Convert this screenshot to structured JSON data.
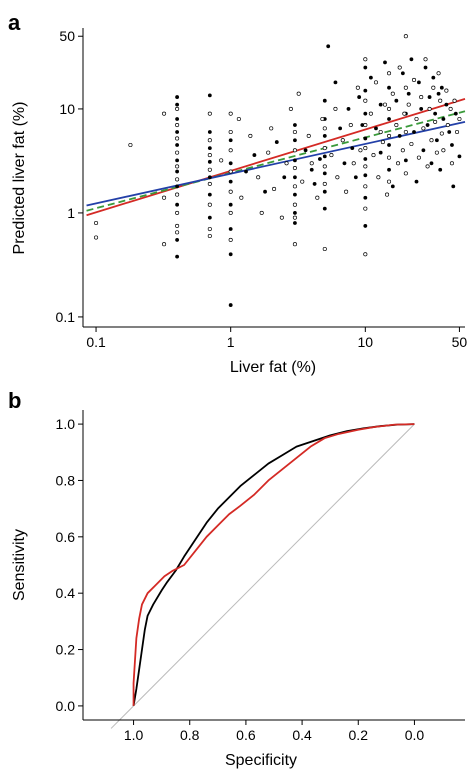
{
  "chart_data": [
    {
      "panel": "a",
      "type": "scatter",
      "xlabel": "Liver fat (%)",
      "ylabel": "Predicted liver fat (%)",
      "x_scale": "log",
      "y_scale": "log",
      "xlim": [
        0.08,
        55
      ],
      "ylim": [
        0.08,
        60
      ],
      "x_ticks": [
        0.1,
        1,
        10,
        50
      ],
      "x_tick_labels": [
        "0.1",
        "1",
        "10",
        "50"
      ],
      "y_ticks": [
        0.1,
        1,
        10,
        50
      ],
      "y_tick_labels": [
        "0.1",
        "1",
        "10",
        "50"
      ],
      "grid": false,
      "legend": "none",
      "series": [
        {
          "marker": "filled-circle",
          "color": "#000000",
          "points": [
            [
              0.4,
              13
            ],
            [
              0.4,
              11
            ],
            [
              0.4,
              8
            ],
            [
              0.4,
              6
            ],
            [
              0.4,
              4.5
            ],
            [
              0.4,
              3.2
            ],
            [
              0.4,
              2.5
            ],
            [
              0.4,
              1.8
            ],
            [
              0.4,
              1.2
            ],
            [
              0.4,
              0.55
            ],
            [
              0.4,
              0.38
            ],
            [
              0.7,
              6
            ],
            [
              0.7,
              4.2
            ],
            [
              0.7,
              3.1
            ],
            [
              0.7,
              2.2
            ],
            [
              0.7,
              1.5
            ],
            [
              0.7,
              0.9
            ],
            [
              0.7,
              13.5
            ],
            [
              1,
              5
            ],
            [
              1,
              3
            ],
            [
              1,
              2
            ],
            [
              1,
              1.2
            ],
            [
              1,
              0.7
            ],
            [
              1,
              0.4
            ],
            [
              1,
              0.13
            ],
            [
              1.3,
              2.5
            ],
            [
              1.5,
              3.6
            ],
            [
              1.8,
              1.6
            ],
            [
              2.2,
              4.8
            ],
            [
              2.5,
              2.2
            ],
            [
              3,
              7
            ],
            [
              3,
              5
            ],
            [
              3,
              3.2
            ],
            [
              3,
              2.2
            ],
            [
              3,
              1.5
            ],
            [
              3,
              1
            ],
            [
              3,
              0.8
            ],
            [
              3.6,
              4
            ],
            [
              4,
              2.6
            ],
            [
              4.2,
              1.9
            ],
            [
              4.6,
              3.3
            ],
            [
              5,
              12
            ],
            [
              5,
              8
            ],
            [
              5,
              5.5
            ],
            [
              5,
              3.5
            ],
            [
              5,
              2.4
            ],
            [
              5,
              1.6
            ],
            [
              5,
              1.1
            ],
            [
              5.3,
              40
            ],
            [
              6,
              18
            ],
            [
              6.5,
              6.5
            ],
            [
              7,
              3
            ],
            [
              7.5,
              10
            ],
            [
              8,
              4.2
            ],
            [
              8.5,
              2.2
            ],
            [
              9,
              13
            ],
            [
              9.5,
              7
            ],
            [
              10,
              25
            ],
            [
              10,
              15
            ],
            [
              10,
              9
            ],
            [
              10,
              5.2
            ],
            [
              10,
              3.3
            ],
            [
              10,
              2.3
            ],
            [
              10,
              1.4
            ],
            [
              10,
              0.75
            ],
            [
              11,
              20
            ],
            [
              12,
              6.5
            ],
            [
              13,
              11
            ],
            [
              13,
              3.8
            ],
            [
              14,
              28
            ],
            [
              15,
              16
            ],
            [
              15,
              8
            ],
            [
              15,
              4.5
            ],
            [
              15,
              2.6
            ],
            [
              16,
              1.8
            ],
            [
              17,
              12
            ],
            [
              18,
              5.5
            ],
            [
              19,
              22
            ],
            [
              20,
              9
            ],
            [
              20,
              3.2
            ],
            [
              21,
              14
            ],
            [
              22,
              30
            ],
            [
              23,
              6
            ],
            [
              24,
              2
            ],
            [
              25,
              18
            ],
            [
              26,
              10
            ],
            [
              27,
              4
            ],
            [
              28,
              25
            ],
            [
              29,
              7
            ],
            [
              30,
              13
            ],
            [
              31,
              3
            ],
            [
              32,
              20
            ],
            [
              33,
              9
            ],
            [
              34,
              5
            ],
            [
              35,
              14
            ],
            [
              36,
              2.6
            ],
            [
              37,
              16
            ],
            [
              38,
              8
            ],
            [
              40,
              11
            ],
            [
              42,
              6
            ],
            [
              44,
              4.5
            ],
            [
              45,
              1.8
            ],
            [
              47,
              9
            ],
            [
              50,
              3.5
            ]
          ]
        },
        {
          "marker": "open-circle",
          "color": "#000000",
          "points": [
            [
              0.1,
              0.58
            ],
            [
              0.1,
              0.8
            ],
            [
              0.18,
              4.5
            ],
            [
              0.4,
              10
            ],
            [
              0.4,
              7
            ],
            [
              0.4,
              5.2
            ],
            [
              0.4,
              3.8
            ],
            [
              0.4,
              2.8
            ],
            [
              0.4,
              2.1
            ],
            [
              0.4,
              1.5
            ],
            [
              0.4,
              1
            ],
            [
              0.4,
              0.75
            ],
            [
              0.4,
              0.65
            ],
            [
              0.32,
              9
            ],
            [
              0.32,
              0.5
            ],
            [
              0.32,
              1.4
            ],
            [
              0.7,
              9
            ],
            [
              0.7,
              5
            ],
            [
              0.7,
              3.6
            ],
            [
              0.7,
              2.6
            ],
            [
              0.7,
              1.9
            ],
            [
              0.7,
              1.2
            ],
            [
              0.7,
              0.7
            ],
            [
              0.7,
              0.6
            ],
            [
              1,
              9
            ],
            [
              1,
              6
            ],
            [
              1,
              4
            ],
            [
              1,
              2.5
            ],
            [
              1,
              1.6
            ],
            [
              1,
              1
            ],
            [
              1,
              0.55
            ],
            [
              0.85,
              3.2
            ],
            [
              1.15,
              8
            ],
            [
              1.2,
              1.4
            ],
            [
              1.4,
              5.5
            ],
            [
              1.6,
              2.2
            ],
            [
              1.7,
              1
            ],
            [
              1.9,
              3.8
            ],
            [
              2,
              6.5
            ],
            [
              2.1,
              1.7
            ],
            [
              2.4,
              0.9
            ],
            [
              2.6,
              3
            ],
            [
              2.8,
              10
            ],
            [
              3,
              6
            ],
            [
              3,
              4
            ],
            [
              3,
              2.7
            ],
            [
              3,
              1.8
            ],
            [
              3,
              1.2
            ],
            [
              3,
              0.9
            ],
            [
              3,
              0.5
            ],
            [
              3.2,
              14
            ],
            [
              3.4,
              2
            ],
            [
              3.8,
              5.5
            ],
            [
              4,
              3
            ],
            [
              4.4,
              1.4
            ],
            [
              4.8,
              8
            ],
            [
              5,
              6.5
            ],
            [
              5,
              4.2
            ],
            [
              5,
              2.8
            ],
            [
              5,
              1.9
            ],
            [
              5,
              0.45
            ],
            [
              5.6,
              3.6
            ],
            [
              6,
              10
            ],
            [
              6.2,
              2.2
            ],
            [
              6.8,
              5
            ],
            [
              7.2,
              1.6
            ],
            [
              7.8,
              7
            ],
            [
              8.2,
              3
            ],
            [
              8.8,
              16
            ],
            [
              9.2,
              4
            ],
            [
              10,
              30
            ],
            [
              10,
              12
            ],
            [
              10,
              7
            ],
            [
              10,
              4.2
            ],
            [
              10,
              2.8
            ],
            [
              10,
              1.8
            ],
            [
              10,
              1.1
            ],
            [
              10,
              0.4
            ],
            [
              11,
              9
            ],
            [
              11.5,
              3.6
            ],
            [
              12,
              18
            ],
            [
              12.5,
              2.2
            ],
            [
              13,
              6
            ],
            [
              13.5,
              4.8
            ],
            [
              14,
              11
            ],
            [
              14.5,
              1.5
            ],
            [
              15,
              22
            ],
            [
              15,
              10
            ],
            [
              15,
              5.5
            ],
            [
              15,
              3.4
            ],
            [
              15,
              2
            ],
            [
              16,
              14
            ],
            [
              17,
              7
            ],
            [
              17.5,
              3
            ],
            [
              18,
              25
            ],
            [
              19,
              4
            ],
            [
              19.5,
              9
            ],
            [
              20,
              50
            ],
            [
              20,
              16
            ],
            [
              20,
              6
            ],
            [
              20,
              2.4
            ],
            [
              21,
              11
            ],
            [
              22,
              4.6
            ],
            [
              23,
              19
            ],
            [
              24,
              8
            ],
            [
              25,
              3.4
            ],
            [
              26,
              13
            ],
            [
              27,
              6.5
            ],
            [
              28,
              30
            ],
            [
              29,
              2.8
            ],
            [
              30,
              10
            ],
            [
              31,
              5
            ],
            [
              32,
              16
            ],
            [
              33,
              7.5
            ],
            [
              34,
              3.8
            ],
            [
              35,
              22
            ],
            [
              36,
              12
            ],
            [
              37,
              5.8
            ],
            [
              38,
              4
            ],
            [
              40,
              15
            ],
            [
              41,
              7
            ],
            [
              43,
              10
            ],
            [
              44,
              3
            ],
            [
              46,
              12
            ],
            [
              48,
              6
            ],
            [
              50,
              8
            ]
          ]
        }
      ],
      "fit_lines": [
        {
          "color": "#d42a25",
          "style": "solid",
          "x": [
            0.085,
            55
          ],
          "y": [
            0.95,
            12.5
          ]
        },
        {
          "color": "#3a9a3a",
          "style": "dashed",
          "x": [
            0.085,
            55
          ],
          "y": [
            1.05,
            9.5
          ]
        },
        {
          "color": "#2340a8",
          "style": "solid",
          "x": [
            0.085,
            55
          ],
          "y": [
            1.18,
            7.5
          ]
        }
      ]
    },
    {
      "panel": "b",
      "type": "line",
      "xlabel": "Specificity",
      "ylabel": "Sensitivity",
      "x_reversed": true,
      "xlim": [
        1.18,
        -0.18
      ],
      "ylim": [
        -0.05,
        1.05
      ],
      "x_ticks": [
        1.0,
        0.8,
        0.6,
        0.4,
        0.2,
        0.0
      ],
      "x_tick_labels": [
        "1.0",
        "0.8",
        "0.6",
        "0.4",
        "0.2",
        "0.0"
      ],
      "y_ticks": [
        0.0,
        0.2,
        0.4,
        0.6,
        0.8,
        1.0
      ],
      "y_tick_labels": [
        "0.0",
        "0.2",
        "0.4",
        "0.6",
        "0.8",
        "1.0"
      ],
      "grid": false,
      "legend": "none",
      "diagonal": {
        "color": "#bbbbbb",
        "x": [
          1.08,
          0.0
        ],
        "y": [
          -0.08,
          1.0
        ]
      },
      "series": [
        {
          "color": "#000000",
          "specificity": [
            1.0,
            0.99,
            0.98,
            0.97,
            0.96,
            0.95,
            0.93,
            0.9,
            0.88,
            0.85,
            0.82,
            0.78,
            0.74,
            0.7,
            0.66,
            0.62,
            0.57,
            0.52,
            0.47,
            0.42,
            0.36,
            0.3,
            0.24,
            0.18,
            0.12,
            0.06,
            0.0
          ],
          "sensitivity": [
            0.0,
            0.06,
            0.13,
            0.2,
            0.27,
            0.32,
            0.36,
            0.41,
            0.44,
            0.48,
            0.53,
            0.59,
            0.65,
            0.7,
            0.74,
            0.78,
            0.82,
            0.86,
            0.89,
            0.92,
            0.94,
            0.96,
            0.975,
            0.985,
            0.993,
            0.998,
            1.0
          ]
        },
        {
          "color": "#d42a25",
          "specificity": [
            1.0,
            1.0,
            0.995,
            0.99,
            0.98,
            0.97,
            0.95,
            0.92,
            0.89,
            0.86,
            0.82,
            0.78,
            0.74,
            0.7,
            0.66,
            0.62,
            0.57,
            0.52,
            0.47,
            0.42,
            0.37,
            0.32,
            0.27,
            0.2,
            0.14,
            0.07,
            0.0
          ],
          "sensitivity": [
            0.0,
            0.08,
            0.16,
            0.24,
            0.31,
            0.36,
            0.4,
            0.43,
            0.46,
            0.48,
            0.5,
            0.55,
            0.6,
            0.64,
            0.68,
            0.71,
            0.75,
            0.8,
            0.84,
            0.88,
            0.92,
            0.95,
            0.965,
            0.98,
            0.99,
            0.998,
            1.0
          ]
        }
      ]
    }
  ],
  "panels": {
    "a": {
      "letter": "a"
    },
    "b": {
      "letter": "b"
    }
  }
}
